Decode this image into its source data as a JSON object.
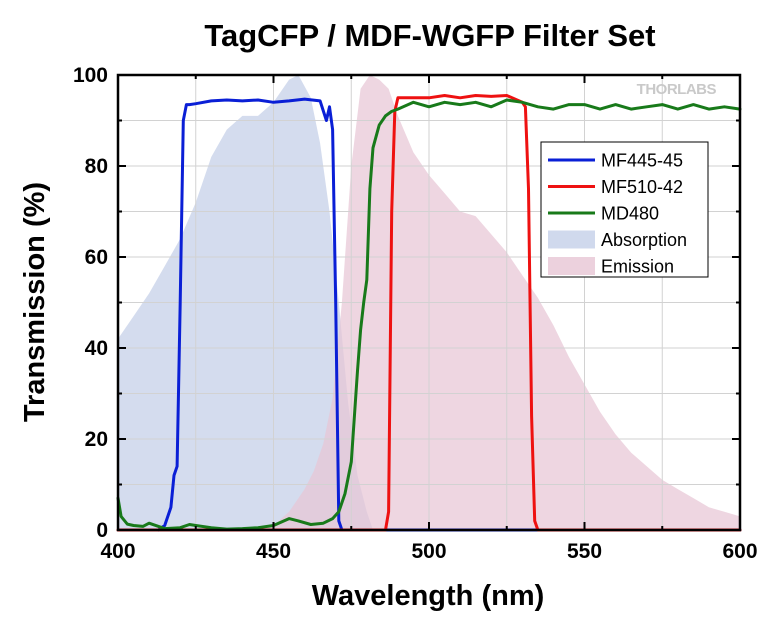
{
  "watermark": "THORLABS",
  "chart_data": {
    "type": "line",
    "title": "TagCFP / MDF-WGFP Filter Set",
    "xlabel": "Wavelength (nm)",
    "ylabel": "Transmission (%)",
    "xlim": [
      400,
      600
    ],
    "ylim": [
      0,
      100
    ],
    "xticks": [
      400,
      450,
      500,
      550,
      600
    ],
    "yticks": [
      0,
      20,
      40,
      60,
      80,
      100
    ],
    "grid": true,
    "legend_position": "right",
    "series": [
      {
        "name": "Absorption",
        "kind": "area",
        "color": "#c4cfe8",
        "x": [
          400,
          405,
          410,
          415,
          420,
          425,
          430,
          435,
          440,
          445,
          450,
          455,
          458,
          462,
          465,
          468,
          471,
          474,
          477,
          480,
          482
        ],
        "y": [
          42,
          47,
          52,
          58,
          64,
          72,
          82,
          88,
          91,
          91,
          94,
          99,
          100,
          95,
          85,
          70,
          50,
          28,
          12,
          4,
          0
        ]
      },
      {
        "name": "Emission",
        "kind": "area",
        "color": "#e7c6d5",
        "x": [
          440,
          450,
          455,
          460,
          463,
          466,
          469,
          472,
          475,
          478,
          481,
          484,
          487,
          490,
          495,
          500,
          505,
          510,
          515,
          520,
          525,
          530,
          535,
          540,
          545,
          550,
          555,
          560,
          565,
          570,
          575,
          580,
          585,
          590,
          595,
          600
        ],
        "y": [
          0,
          1,
          4,
          9,
          13,
          19,
          29,
          50,
          80,
          97,
          100,
          99,
          97,
          91,
          83,
          78,
          74,
          70,
          69,
          65,
          61,
          56,
          51,
          45,
          38,
          32,
          26,
          21,
          17,
          14,
          11,
          9,
          7,
          5,
          4,
          3
        ]
      },
      {
        "name": "MF445-45",
        "kind": "line",
        "color": "#0a1fd6",
        "x": [
          413,
          415,
          417,
          418,
          419,
          420,
          421,
          422,
          423,
          425,
          430,
          435,
          440,
          445,
          450,
          455,
          460,
          465,
          467,
          468,
          469,
          470,
          471,
          472,
          600
        ],
        "y": [
          0,
          1,
          5,
          12,
          14,
          50,
          90,
          93.5,
          93.5,
          93.7,
          94.3,
          94.5,
          94.3,
          94.5,
          94,
          94.3,
          94.7,
          94.3,
          90,
          93,
          88,
          50,
          2,
          0,
          0
        ]
      },
      {
        "name": "MF510-42",
        "kind": "line",
        "color": "#ee1111",
        "x": [
          400,
          486,
          487,
          488,
          489,
          490,
          495,
          500,
          505,
          510,
          515,
          520,
          525,
          530,
          531,
          532,
          533,
          534,
          535,
          600
        ],
        "y": [
          0,
          0,
          4,
          70,
          92,
          95,
          95,
          95,
          95.5,
          95,
          95.5,
          95.3,
          95.5,
          94,
          93,
          75,
          25,
          2,
          0,
          0
        ]
      },
      {
        "name": "MD480",
        "kind": "line",
        "color": "#187a1a",
        "x": [
          400,
          401,
          403,
          405,
          408,
          410,
          415,
          420,
          423,
          425,
          430,
          435,
          440,
          445,
          450,
          455,
          458,
          462,
          466,
          469,
          471,
          473,
          475,
          477,
          478,
          479,
          480,
          481,
          482,
          484,
          486,
          488,
          490,
          495,
          500,
          505,
          510,
          515,
          520,
          525,
          530,
          535,
          540,
          545,
          550,
          555,
          560,
          565,
          570,
          575,
          580,
          585,
          590,
          595,
          600
        ],
        "y": [
          7,
          3,
          1.3,
          1,
          0.8,
          1.5,
          0.3,
          0.5,
          1.2,
          1,
          0.5,
          0.2,
          0.3,
          0.5,
          1,
          2.5,
          2,
          1.2,
          1.5,
          2.5,
          4,
          8,
          15,
          35,
          44,
          50,
          55,
          75,
          84,
          89,
          91,
          92,
          92.5,
          94,
          93,
          94,
          93.5,
          94,
          93,
          94.5,
          94,
          93,
          92.5,
          93.5,
          93.5,
          92.5,
          93.5,
          92.5,
          93,
          93.5,
          92.5,
          93.5,
          92.5,
          93,
          92.5
        ]
      }
    ],
    "legend_order": [
      "MF445-45",
      "MF510-42",
      "MD480",
      "Absorption",
      "Emission"
    ]
  }
}
